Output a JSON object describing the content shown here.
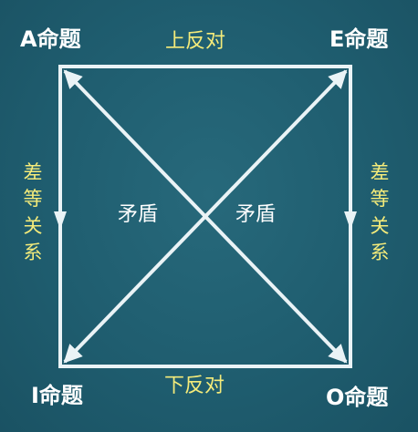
{
  "corners": {
    "a": "A命题",
    "e": "E命题",
    "i": "I命题",
    "o": "O命题"
  },
  "relations": {
    "top": "上反对",
    "bottom": "下反对",
    "left": "差等关系",
    "right": "差等关系",
    "diag_left": "矛盾",
    "diag_right": "矛盾"
  },
  "colors": {
    "background": "#1f5d6f",
    "lines": "#eaf3f6",
    "relation_text": "#f4eb7a",
    "corner_text": "#ffffff"
  }
}
